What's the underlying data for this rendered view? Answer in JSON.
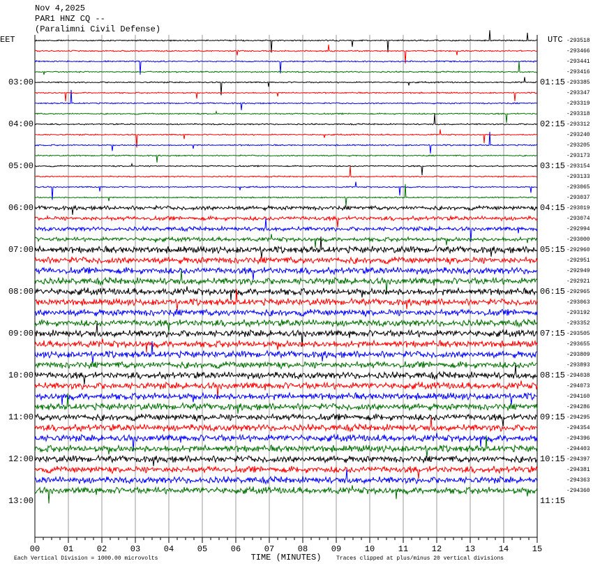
{
  "chart_data": {
    "type": "helicorder",
    "title_lines": [
      "Nov 4,2025",
      "PAR1 HNZ CQ --",
      "(Paralimni Civil Defense)"
    ],
    "left_zone": "EET",
    "right_zone": "UTC",
    "left_hours": [
      "03:00",
      "04:00",
      "05:00",
      "06:00",
      "07:00",
      "08:00",
      "09:00",
      "10:00",
      "11:00",
      "12:00",
      "13:00"
    ],
    "right_hours": [
      "01:15",
      "02:15",
      "03:15",
      "04:15",
      "05:15",
      "06:15",
      "07:15",
      "08:15",
      "09:15",
      "10:15",
      "11:15"
    ],
    "trace_offsets": [
      -293518,
      -293466,
      -293441,
      -293416,
      -293385,
      -293347,
      -293319,
      -293318,
      -293312,
      -293240,
      -293205,
      -293173,
      -293154,
      -293133,
      -293065,
      -293037,
      -293019,
      -293074,
      -292994,
      -293000,
      -292960,
      -292951,
      -292949,
      -292921,
      -292965,
      -293063,
      -293192,
      -293352,
      -293505,
      -293655,
      -293809,
      -293893,
      -294038,
      -294073,
      -294160,
      -294286,
      -294295,
      -294354,
      -294396,
      -294403,
      -294397,
      -294381,
      -294363,
      -294360
    ],
    "colors": [
      "#000000",
      "#ff0000",
      "#0000ff",
      "#007000"
    ],
    "xlabel": "TIME (MINUTES)",
    "xlim": [
      0,
      15
    ],
    "xticks": [
      {
        "value": 0,
        "label": "00"
      },
      {
        "value": 1,
        "label": "01"
      },
      {
        "value": 2,
        "label": "02"
      },
      {
        "value": 3,
        "label": "03"
      },
      {
        "value": 4,
        "label": "04"
      },
      {
        "value": 5,
        "label": "05"
      },
      {
        "value": 6,
        "label": "06"
      },
      {
        "value": 7,
        "label": "07"
      },
      {
        "value": 8,
        "label": "08"
      },
      {
        "value": 9,
        "label": "09"
      },
      {
        "value": 10,
        "label": "10"
      },
      {
        "value": 11,
        "label": "11"
      },
      {
        "value": 12,
        "label": "12"
      },
      {
        "value": 13,
        "label": "13"
      },
      {
        "value": 14,
        "label": "14"
      },
      15
    ],
    "scale_note": "Each Vertical Division = 1000.00 microvolts",
    "clip_note": "Traces clipped at plus/minus 20 vertical divisions"
  }
}
